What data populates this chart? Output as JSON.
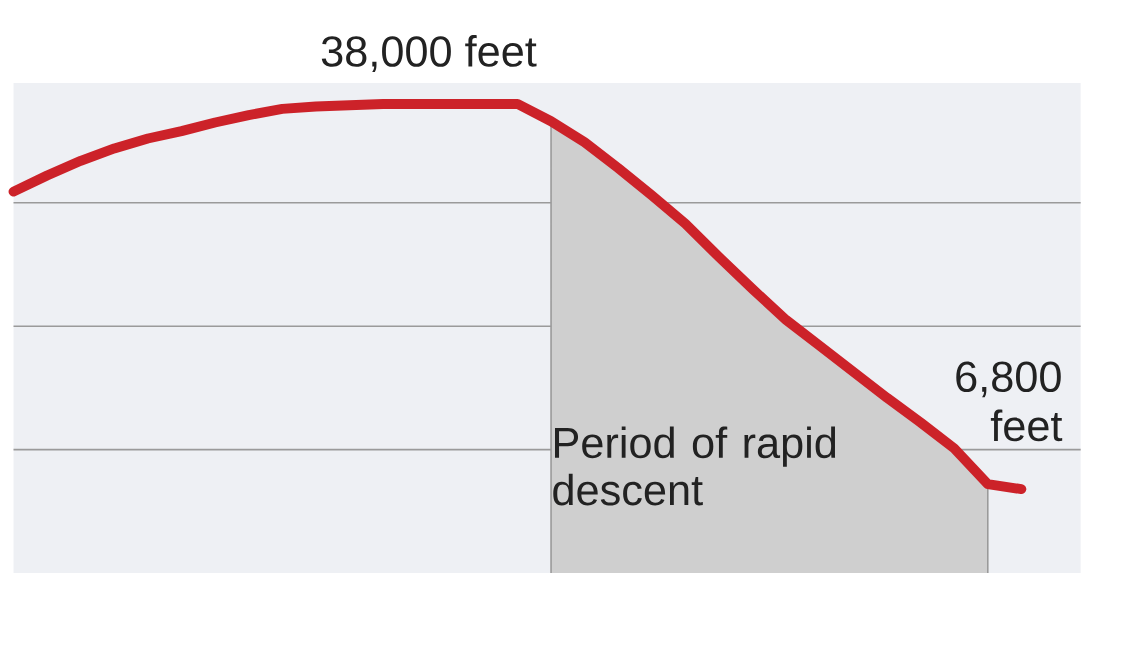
{
  "chart_data": {
    "type": "line",
    "categories": [
      null,
      null,
      null,
      null,
      null,
      null,
      null,
      null,
      null,
      null,
      null,
      null,
      null,
      null,
      null,
      null,
      null,
      null,
      null,
      null,
      null,
      null,
      null,
      null,
      null,
      null,
      null,
      null,
      null,
      null,
      null
    ],
    "series": [
      {
        "type": "area",
        "color": "#cfcfcf",
        "values": [
          null,
          null,
          null,
          null,
          null,
          null,
          null,
          null,
          null,
          null,
          null,
          null,
          null,
          null,
          null,
          null,
          36600,
          34900,
          32800,
          30600,
          28300,
          25600,
          23000,
          20500,
          18400,
          16300,
          14200,
          12200,
          10100,
          7200,
          null
        ]
      },
      {
        "color": "#cc2229",
        "values": [
          30900,
          32200,
          33400,
          34400,
          35200,
          35800,
          36500,
          37100,
          37600,
          37800,
          37900,
          38000,
          38000,
          38000,
          38000,
          38000,
          36600,
          34900,
          32800,
          30600,
          28300,
          25600,
          23000,
          20500,
          18400,
          16300,
          14200,
          12200,
          10100,
          7200,
          6800
        ],
        "value_labels": [
          null,
          null,
          null,
          null,
          null,
          null,
          null,
          null,
          null,
          null,
          null,
          null,
          "38,000 feet",
          null,
          null,
          null,
          null,
          null,
          null,
          null,
          null,
          null,
          null,
          null,
          null,
          null,
          null,
          null,
          null,
          null,
          "6,800 feet"
        ]
      }
    ],
    "ylim": [
      0,
      39700
    ],
    "yticks": [
      {
        "value": 10000,
        "label": null
      },
      {
        "value": 20000,
        "label": null
      },
      {
        "value": 30000,
        "label": null
      }
    ],
    "grid": "y",
    "marker": "none",
    "annotations": [
      "Period of rapid descent"
    ]
  }
}
